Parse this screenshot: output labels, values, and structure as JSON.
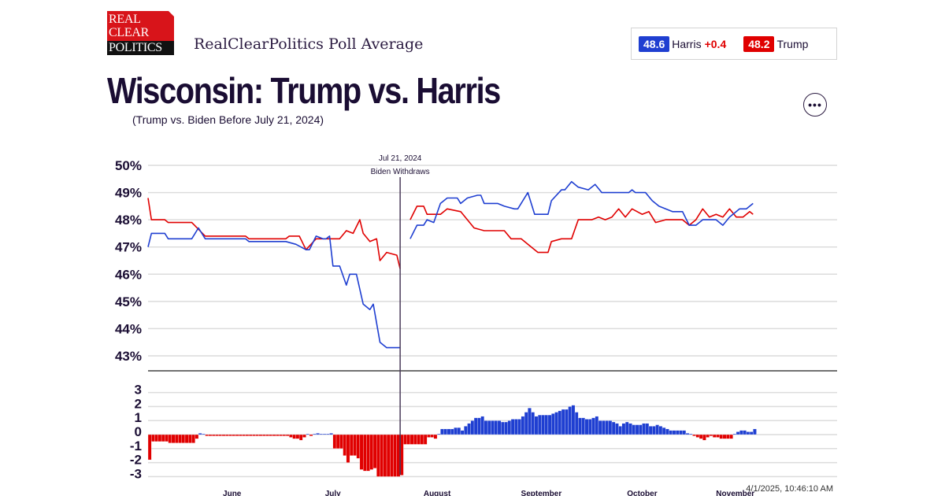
{
  "header": {
    "logo_text": [
      "REAL",
      "CLEAR",
      "POLITICS"
    ],
    "brand_subtitle": "RealClearPolitics Poll Average",
    "title": "Wisconsin: Trump vs. Harris",
    "note": "(Trump vs. Biden Before July 21, 2024)",
    "more_icon": "ellipsis-icon"
  },
  "legend": {
    "harris_value": "48.6",
    "harris_label": "Harris",
    "harris_spread": "+0.4",
    "trump_value": "48.2",
    "trump_label": "Trump"
  },
  "colors": {
    "democrat": "#1f3fd1",
    "republican": "#e00000",
    "spread_red": "#e00000",
    "text": "#1a0d33"
  },
  "timestamp": "4/1/2025, 10:46:10 AM",
  "chart_data": [
    {
      "type": "line",
      "xlim": [
        "2024-05-07",
        "2024-11-28"
      ],
      "ylim": [
        43,
        50
      ],
      "y_ticks": [
        "50%",
        "49%",
        "48%",
        "47%",
        "46%",
        "45%",
        "44%",
        "43%"
      ],
      "grid": true,
      "annotation": {
        "date": "2024-07-21",
        "line1": "Jul 21, 2024",
        "line2": "Biden Withdraws"
      },
      "series": [
        {
          "color": "#e00000",
          "segments": [
            [
              [
                "2024-05-07",
                48.8
              ],
              [
                "2024-05-08",
                48.0
              ],
              [
                "2024-05-12",
                48.0
              ],
              [
                "2024-05-13",
                47.9
              ],
              [
                "2024-05-20",
                47.9
              ],
              [
                "2024-05-24",
                47.4
              ],
              [
                "2024-06-05",
                47.4
              ],
              [
                "2024-06-06",
                47.3
              ],
              [
                "2024-06-17",
                47.3
              ],
              [
                "2024-06-18",
                47.4
              ],
              [
                "2024-06-21",
                47.4
              ],
              [
                "2024-06-23",
                46.9
              ],
              [
                "2024-06-26",
                47.3
              ],
              [
                "2024-07-03",
                47.3
              ],
              [
                "2024-07-05",
                47.6
              ],
              [
                "2024-07-07",
                47.5
              ],
              [
                "2024-07-09",
                48.0
              ],
              [
                "2024-07-10",
                47.5
              ],
              [
                "2024-07-12",
                47.2
              ],
              [
                "2024-07-14",
                47.3
              ],
              [
                "2024-07-15",
                46.5
              ],
              [
                "2024-07-17",
                46.8
              ],
              [
                "2024-07-20",
                46.7
              ],
              [
                "2024-07-21",
                46.2
              ]
            ],
            [
              [
                "2024-07-24",
                48.0
              ],
              [
                "2024-07-26",
                48.5
              ],
              [
                "2024-07-28",
                48.5
              ],
              [
                "2024-07-29",
                48.2
              ],
              [
                "2024-08-02",
                48.2
              ],
              [
                "2024-08-04",
                48.4
              ],
              [
                "2024-08-08",
                48.3
              ],
              [
                "2024-08-10",
                48.0
              ],
              [
                "2024-08-12",
                47.7
              ],
              [
                "2024-08-15",
                47.6
              ],
              [
                "2024-08-21",
                47.6
              ],
              [
                "2024-08-23",
                47.3
              ],
              [
                "2024-08-26",
                47.3
              ],
              [
                "2024-08-29",
                47.0
              ],
              [
                "2024-08-31",
                46.8
              ],
              [
                "2024-09-03",
                46.8
              ],
              [
                "2024-09-04",
                47.2
              ],
              [
                "2024-09-07",
                47.3
              ],
              [
                "2024-09-10",
                47.3
              ],
              [
                "2024-09-12",
                48.0
              ],
              [
                "2024-09-16",
                48.0
              ],
              [
                "2024-09-18",
                48.1
              ],
              [
                "2024-09-20",
                48.0
              ],
              [
                "2024-09-22",
                48.1
              ],
              [
                "2024-09-24",
                48.4
              ],
              [
                "2024-09-26",
                48.1
              ],
              [
                "2024-09-28",
                48.4
              ],
              [
                "2024-10-01",
                48.2
              ],
              [
                "2024-10-03",
                48.3
              ],
              [
                "2024-10-05",
                47.9
              ],
              [
                "2024-10-08",
                48.0
              ],
              [
                "2024-10-13",
                48.0
              ],
              [
                "2024-10-15",
                47.8
              ],
              [
                "2024-10-17",
                48.0
              ],
              [
                "2024-10-19",
                48.4
              ],
              [
                "2024-10-21",
                48.1
              ],
              [
                "2024-10-23",
                48.2
              ],
              [
                "2024-10-25",
                48.1
              ],
              [
                "2024-10-27",
                48.4
              ],
              [
                "2024-10-29",
                48.1
              ],
              [
                "2024-10-31",
                48.1
              ],
              [
                "2024-11-02",
                48.3
              ],
              [
                "2024-11-03",
                48.2
              ]
            ]
          ]
        },
        {
          "color": "#1f3fd1",
          "segments": [
            [
              [
                "2024-05-07",
                47.0
              ],
              [
                "2024-05-08",
                47.5
              ],
              [
                "2024-05-12",
                47.5
              ],
              [
                "2024-05-13",
                47.3
              ],
              [
                "2024-05-20",
                47.3
              ],
              [
                "2024-05-22",
                47.7
              ],
              [
                "2024-05-24",
                47.3
              ],
              [
                "2024-06-05",
                47.3
              ],
              [
                "2024-06-06",
                47.2
              ],
              [
                "2024-06-17",
                47.2
              ],
              [
                "2024-06-20",
                47.1
              ],
              [
                "2024-06-23",
                46.9
              ],
              [
                "2024-06-24",
                46.9
              ],
              [
                "2024-06-26",
                47.4
              ],
              [
                "2024-06-28",
                47.3
              ],
              [
                "2024-06-29",
                47.3
              ],
              [
                "2024-06-30",
                47.4
              ],
              [
                "2024-07-01",
                46.3
              ],
              [
                "2024-07-03",
                46.3
              ],
              [
                "2024-07-05",
                45.6
              ],
              [
                "2024-07-06",
                46.0
              ],
              [
                "2024-07-08",
                46.0
              ],
              [
                "2024-07-10",
                44.9
              ],
              [
                "2024-07-12",
                44.7
              ],
              [
                "2024-07-13",
                44.9
              ],
              [
                "2024-07-15",
                43.5
              ],
              [
                "2024-07-17",
                43.3
              ],
              [
                "2024-07-21",
                43.3
              ]
            ],
            [
              [
                "2024-07-24",
                47.3
              ],
              [
                "2024-07-26",
                47.8
              ],
              [
                "2024-07-28",
                47.8
              ],
              [
                "2024-07-29",
                48.0
              ],
              [
                "2024-07-31",
                47.9
              ],
              [
                "2024-08-02",
                48.6
              ],
              [
                "2024-08-04",
                48.8
              ],
              [
                "2024-08-07",
                48.8
              ],
              [
                "2024-08-08",
                48.6
              ],
              [
                "2024-08-10",
                48.8
              ],
              [
                "2024-08-13",
                48.9
              ],
              [
                "2024-08-14",
                48.9
              ],
              [
                "2024-08-15",
                48.6
              ],
              [
                "2024-08-19",
                48.6
              ],
              [
                "2024-08-21",
                48.5
              ],
              [
                "2024-08-24",
                48.4
              ],
              [
                "2024-08-25",
                48.4
              ],
              [
                "2024-08-28",
                49.0
              ],
              [
                "2024-08-30",
                48.2
              ],
              [
                "2024-09-03",
                48.2
              ],
              [
                "2024-09-04",
                48.7
              ],
              [
                "2024-09-07",
                49.1
              ],
              [
                "2024-09-08",
                49.1
              ],
              [
                "2024-09-10",
                49.4
              ],
              [
                "2024-09-12",
                49.2
              ],
              [
                "2024-09-15",
                49.1
              ],
              [
                "2024-09-17",
                49.3
              ],
              [
                "2024-09-19",
                49.0
              ],
              [
                "2024-09-27",
                49.0
              ],
              [
                "2024-09-28",
                49.1
              ],
              [
                "2024-09-29",
                49.0
              ],
              [
                "2024-10-02",
                49.0
              ],
              [
                "2024-10-04",
                48.7
              ],
              [
                "2024-10-06",
                48.5
              ],
              [
                "2024-10-10",
                48.3
              ],
              [
                "2024-10-13",
                48.3
              ],
              [
                "2024-10-15",
                47.8
              ],
              [
                "2024-10-17",
                47.8
              ],
              [
                "2024-10-19",
                48.0
              ],
              [
                "2024-10-23",
                48.0
              ],
              [
                "2024-10-25",
                47.8
              ],
              [
                "2024-10-27",
                48.1
              ],
              [
                "2024-10-30",
                48.4
              ],
              [
                "2024-11-01",
                48.4
              ],
              [
                "2024-11-03",
                48.6
              ]
            ]
          ]
        }
      ]
    },
    {
      "type": "bar",
      "description_of_values": "Democrat minus Republican spread per day",
      "ylim": [
        -3,
        3
      ],
      "y_ticks": [
        "3",
        "2",
        "1",
        "0",
        "-1",
        "-2",
        "-3"
      ],
      "x_ticks": [
        [
          "2024-06-01",
          "June"
        ],
        [
          "2024-07-01",
          "July"
        ],
        [
          "2024-08-01",
          "August"
        ],
        [
          "2024-09-01",
          "September"
        ],
        [
          "2024-10-01",
          "October"
        ],
        [
          "2024-11-01",
          "November"
        ]
      ],
      "positive_color": "#1f3fd1",
      "negative_color": "#e00000"
    }
  ]
}
